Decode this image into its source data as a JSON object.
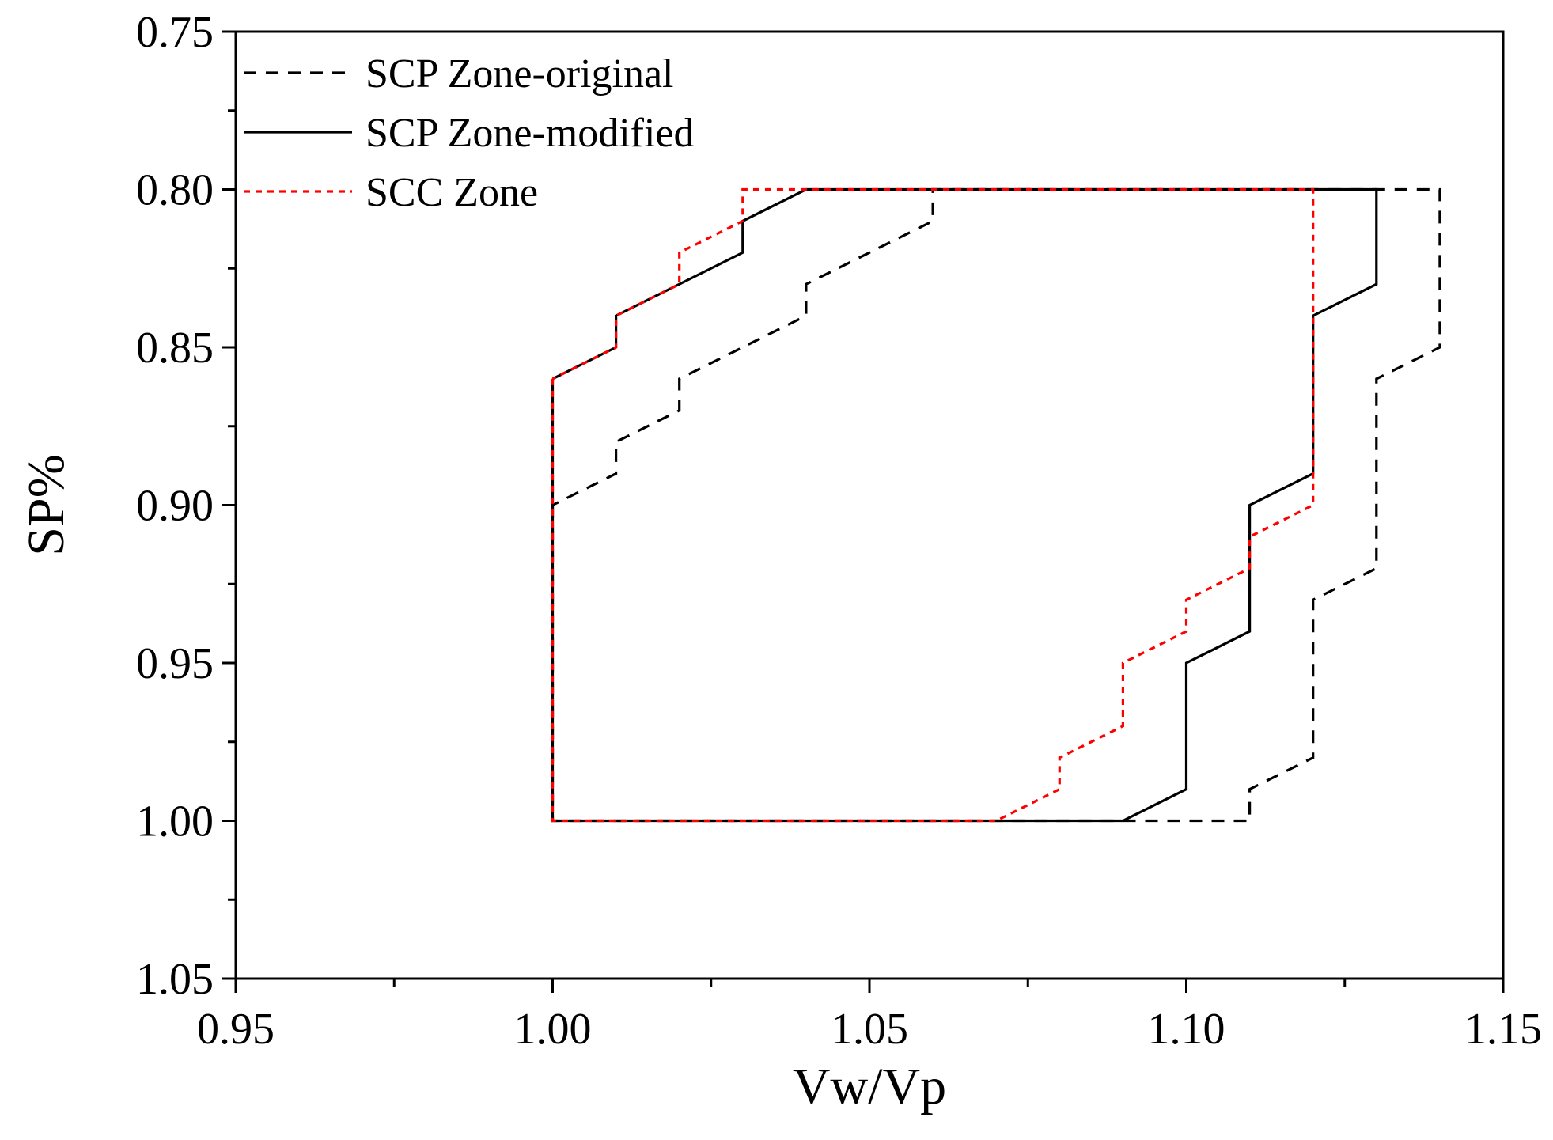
{
  "chart_data": {
    "type": "line",
    "title": "",
    "xlabel": "Vw/Vp",
    "ylabel": "SP%",
    "xlim": [
      0.95,
      1.15
    ],
    "ylim": [
      0.75,
      1.05
    ],
    "y_inverted": true,
    "grid": false,
    "legend_position": "top-left",
    "x_ticks": [
      "0.95",
      "1.00",
      "1.05",
      "1.10",
      "1.15"
    ],
    "y_ticks": [
      "0.75",
      "0.80",
      "0.85",
      "0.90",
      "0.95",
      "1.00",
      "1.05"
    ],
    "series": [
      {
        "name": "SCP Zone-original",
        "style": "dashed",
        "color": "#000000",
        "points": [
          [
            1.0,
            0.9
          ],
          [
            1.0,
            1.0
          ],
          [
            1.11,
            1.0
          ],
          [
            1.11,
            0.99
          ],
          [
            1.12,
            0.98
          ],
          [
            1.12,
            0.93
          ],
          [
            1.13,
            0.92
          ],
          [
            1.13,
            0.86
          ],
          [
            1.14,
            0.85
          ],
          [
            1.14,
            0.8
          ],
          [
            1.06,
            0.8
          ],
          [
            1.06,
            0.81
          ],
          [
            1.04,
            0.83
          ],
          [
            1.04,
            0.84
          ],
          [
            1.02,
            0.86
          ],
          [
            1.02,
            0.87
          ],
          [
            1.01,
            0.88
          ],
          [
            1.01,
            0.89
          ],
          [
            1.0,
            0.9
          ]
        ]
      },
      {
        "name": "SCP Zone-modified",
        "style": "solid",
        "color": "#000000",
        "points": [
          [
            1.0,
            0.86
          ],
          [
            1.0,
            1.0
          ],
          [
            1.09,
            1.0
          ],
          [
            1.1,
            0.99
          ],
          [
            1.1,
            0.95
          ],
          [
            1.11,
            0.94
          ],
          [
            1.11,
            0.9
          ],
          [
            1.12,
            0.89
          ],
          [
            1.12,
            0.84
          ],
          [
            1.13,
            0.83
          ],
          [
            1.13,
            0.8
          ],
          [
            1.04,
            0.8
          ],
          [
            1.03,
            0.81
          ],
          [
            1.03,
            0.82
          ],
          [
            1.01,
            0.84
          ],
          [
            1.01,
            0.85
          ],
          [
            1.0,
            0.86
          ]
        ]
      },
      {
        "name": "SCC Zone",
        "style": "dotted",
        "color": "#ff0000",
        "points": [
          [
            1.0,
            0.86
          ],
          [
            1.0,
            1.0
          ],
          [
            1.07,
            1.0
          ],
          [
            1.08,
            0.99
          ],
          [
            1.08,
            0.98
          ],
          [
            1.09,
            0.97
          ],
          [
            1.09,
            0.95
          ],
          [
            1.1,
            0.94
          ],
          [
            1.1,
            0.93
          ],
          [
            1.11,
            0.92
          ],
          [
            1.11,
            0.91
          ],
          [
            1.12,
            0.9
          ],
          [
            1.12,
            0.8
          ],
          [
            1.03,
            0.8
          ],
          [
            1.03,
            0.81
          ],
          [
            1.02,
            0.82
          ],
          [
            1.02,
            0.83
          ],
          [
            1.01,
            0.84
          ],
          [
            1.01,
            0.85
          ],
          [
            1.0,
            0.86
          ]
        ]
      }
    ]
  }
}
